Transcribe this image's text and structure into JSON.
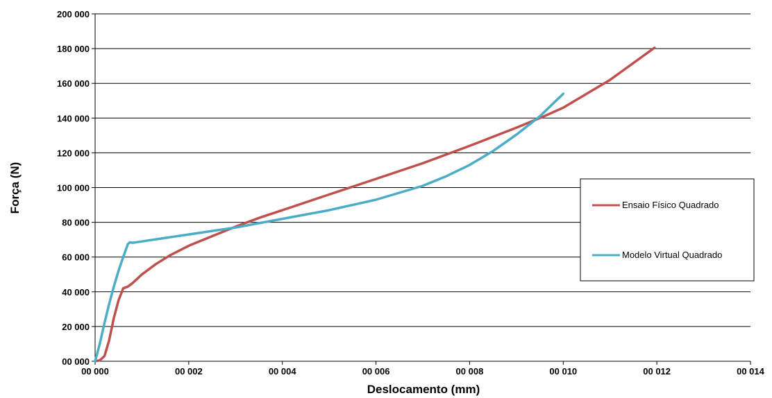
{
  "chart_data": {
    "type": "line",
    "title": "",
    "xlabel": "Deslocamento (mm)",
    "ylabel": "Força (N)",
    "xlim": [
      0,
      0.014
    ],
    "ylim": [
      0,
      200000
    ],
    "x_ticks": [
      0,
      0.002,
      0.004,
      0.006,
      0.008,
      0.01,
      0.012,
      0.014
    ],
    "x_tick_labels": [
      "00 000",
      "00 002",
      "00 004",
      "00 006",
      "00 008",
      "00 010",
      "00 012",
      "00 014"
    ],
    "y_ticks": [
      0,
      20000,
      40000,
      60000,
      80000,
      100000,
      120000,
      140000,
      160000,
      180000,
      200000
    ],
    "y_tick_labels": [
      "00 000",
      "20 000",
      "40 000",
      "60 000",
      "80 000",
      "100 000",
      "120 000",
      "140 000",
      "160 000",
      "180 000",
      "200 000"
    ],
    "grid": "horizontal",
    "legend_position": "right",
    "series": [
      {
        "name": "Ensaio Físico Quadrado",
        "color": "#c0504d",
        "points": [
          [
            0.0,
            0
          ],
          [
            0.0001,
            500
          ],
          [
            0.0002,
            3000
          ],
          [
            0.0003,
            12000
          ],
          [
            0.0004,
            25000
          ],
          [
            0.0005,
            35000
          ],
          [
            0.0006,
            42000
          ],
          [
            0.0007,
            43000
          ],
          [
            0.0008,
            45000
          ],
          [
            0.001,
            50000
          ],
          [
            0.0013,
            56000
          ],
          [
            0.0016,
            61000
          ],
          [
            0.002,
            66500
          ],
          [
            0.0025,
            72000
          ],
          [
            0.003,
            77500
          ],
          [
            0.0035,
            82500
          ],
          [
            0.004,
            87000
          ],
          [
            0.005,
            96000
          ],
          [
            0.006,
            105000
          ],
          [
            0.007,
            114000
          ],
          [
            0.008,
            124000
          ],
          [
            0.009,
            134500
          ],
          [
            0.0095,
            140000
          ],
          [
            0.01,
            146000
          ],
          [
            0.011,
            162000
          ],
          [
            0.01195,
            180500
          ]
        ]
      },
      {
        "name": "Modelo Virtual Quadrado",
        "color": "#4bacc6",
        "points": [
          [
            0.0,
            0
          ],
          [
            0.0001,
            10000
          ],
          [
            0.0002,
            22000
          ],
          [
            0.0003,
            33000
          ],
          [
            0.0004,
            43000
          ],
          [
            0.0005,
            52000
          ],
          [
            0.0006,
            60000
          ],
          [
            0.0007,
            67500
          ],
          [
            0.00075,
            68500
          ],
          [
            0.0008,
            68200
          ],
          [
            0.001,
            69000
          ],
          [
            0.0015,
            71000
          ],
          [
            0.002,
            73000
          ],
          [
            0.0025,
            75000
          ],
          [
            0.003,
            77000
          ],
          [
            0.004,
            82000
          ],
          [
            0.005,
            87000
          ],
          [
            0.006,
            93000
          ],
          [
            0.0065,
            97000
          ],
          [
            0.007,
            101000
          ],
          [
            0.0075,
            106500
          ],
          [
            0.008,
            113000
          ],
          [
            0.0085,
            121000
          ],
          [
            0.009,
            130500
          ],
          [
            0.0095,
            141000
          ],
          [
            0.01,
            154000
          ]
        ]
      }
    ]
  }
}
